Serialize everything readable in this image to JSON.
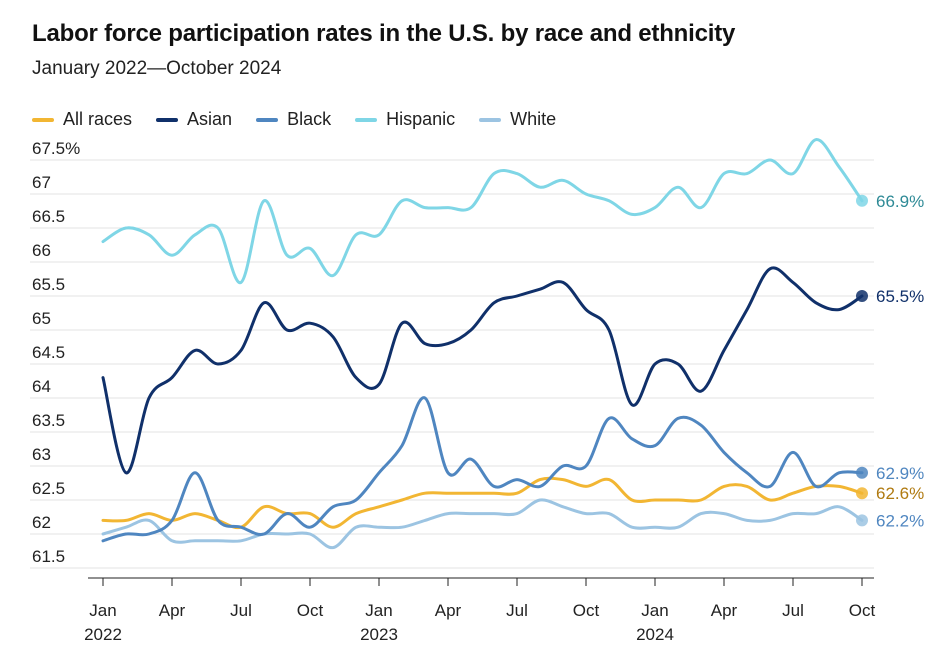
{
  "chart_data": {
    "type": "line",
    "title": "Labor force participation rates in the U.S. by race and ethnicity",
    "subtitle": "January 2022—October 2024",
    "y_tick_labels": [
      "67.5%",
      "67",
      "66.5",
      "66",
      "65.5",
      "65",
      "64.5",
      "64",
      "63.5",
      "63",
      "62.5",
      "62",
      "61.5"
    ],
    "y_tick_values": [
      67.5,
      67,
      66.5,
      66,
      65.5,
      65,
      64.5,
      64,
      63.5,
      63,
      62.5,
      62,
      61.5
    ],
    "ylim": [
      61.5,
      67.7
    ],
    "x_ticks": [
      {
        "index": 0,
        "month": "Jan",
        "year": "2022"
      },
      {
        "index": 3,
        "month": "Apr",
        "year": ""
      },
      {
        "index": 6,
        "month": "Jul",
        "year": ""
      },
      {
        "index": 9,
        "month": "Oct",
        "year": ""
      },
      {
        "index": 12,
        "month": "Jan",
        "year": "2023"
      },
      {
        "index": 15,
        "month": "Apr",
        "year": ""
      },
      {
        "index": 18,
        "month": "Jul",
        "year": ""
      },
      {
        "index": 21,
        "month": "Oct",
        "year": ""
      },
      {
        "index": 24,
        "month": "Jan",
        "year": "2024"
      },
      {
        "index": 27,
        "month": "Apr",
        "year": ""
      },
      {
        "index": 30,
        "month": "Jul",
        "year": ""
      },
      {
        "index": 33,
        "month": "Oct",
        "year": ""
      }
    ],
    "x": [
      "2022-01",
      "2022-02",
      "2022-03",
      "2022-04",
      "2022-05",
      "2022-06",
      "2022-07",
      "2022-08",
      "2022-09",
      "2022-10",
      "2022-11",
      "2022-12",
      "2023-01",
      "2023-02",
      "2023-03",
      "2023-04",
      "2023-05",
      "2023-06",
      "2023-07",
      "2023-08",
      "2023-09",
      "2023-10",
      "2023-11",
      "2023-12",
      "2024-01",
      "2024-02",
      "2024-03",
      "2024-04",
      "2024-05",
      "2024-06",
      "2024-07",
      "2024-08",
      "2024-09",
      "2024-10"
    ],
    "grid": true,
    "legend_position": "top-left",
    "series": [
      {
        "name": "All races",
        "color": "#f2b633",
        "label_color": "#b07a10",
        "end_label": "62.6%",
        "values": [
          62.2,
          62.2,
          62.3,
          62.2,
          62.3,
          62.2,
          62.1,
          62.4,
          62.3,
          62.3,
          62.1,
          62.3,
          62.4,
          62.5,
          62.6,
          62.6,
          62.6,
          62.6,
          62.6,
          62.8,
          62.8,
          62.7,
          62.8,
          62.5,
          62.5,
          62.5,
          62.5,
          62.7,
          62.7,
          62.5,
          62.6,
          62.7,
          62.7,
          62.6
        ]
      },
      {
        "name": "Asian",
        "color": "#10306a",
        "label_color": "#10306a",
        "end_label": "65.5%",
        "values": [
          64.3,
          62.9,
          64.0,
          64.3,
          64.7,
          64.5,
          64.7,
          65.4,
          65.0,
          65.1,
          64.9,
          64.3,
          64.2,
          65.1,
          64.8,
          64.8,
          65.0,
          65.4,
          65.5,
          65.6,
          65.7,
          65.3,
          65.0,
          63.9,
          64.5,
          64.5,
          64.1,
          64.7,
          65.3,
          65.9,
          65.7,
          65.4,
          65.3,
          65.5
        ]
      },
      {
        "name": "Black",
        "color": "#4f86c0",
        "label_color": "#4f86c0",
        "end_label": "62.9%",
        "values": [
          61.9,
          62.0,
          62.0,
          62.2,
          62.9,
          62.2,
          62.1,
          62.0,
          62.3,
          62.1,
          62.4,
          62.5,
          62.9,
          63.3,
          64.0,
          62.9,
          63.1,
          62.7,
          62.8,
          62.7,
          63.0,
          63.0,
          63.7,
          63.4,
          63.3,
          63.7,
          63.6,
          63.2,
          62.9,
          62.7,
          63.2,
          62.7,
          62.9,
          62.9
        ]
      },
      {
        "name": "Hispanic",
        "color": "#7fd6e6",
        "label_color": "#2e8a96",
        "end_label": "66.9%",
        "values": [
          66.3,
          66.5,
          66.4,
          66.1,
          66.4,
          66.5,
          65.7,
          66.9,
          66.1,
          66.2,
          65.8,
          66.4,
          66.4,
          66.9,
          66.8,
          66.8,
          66.8,
          67.3,
          67.3,
          67.1,
          67.2,
          67.0,
          66.9,
          66.7,
          66.8,
          67.1,
          66.8,
          67.3,
          67.3,
          67.5,
          67.3,
          67.8,
          67.4,
          66.9
        ]
      },
      {
        "name": "White",
        "color": "#9cc4e2",
        "label_color": "#4f86c0",
        "end_label": "62.2%",
        "values": [
          62.0,
          62.1,
          62.2,
          61.9,
          61.9,
          61.9,
          61.9,
          62.0,
          62.0,
          62.0,
          61.8,
          62.1,
          62.1,
          62.1,
          62.2,
          62.3,
          62.3,
          62.3,
          62.3,
          62.5,
          62.4,
          62.3,
          62.3,
          62.1,
          62.1,
          62.1,
          62.3,
          62.3,
          62.2,
          62.2,
          62.3,
          62.3,
          62.4,
          62.2
        ]
      }
    ]
  }
}
